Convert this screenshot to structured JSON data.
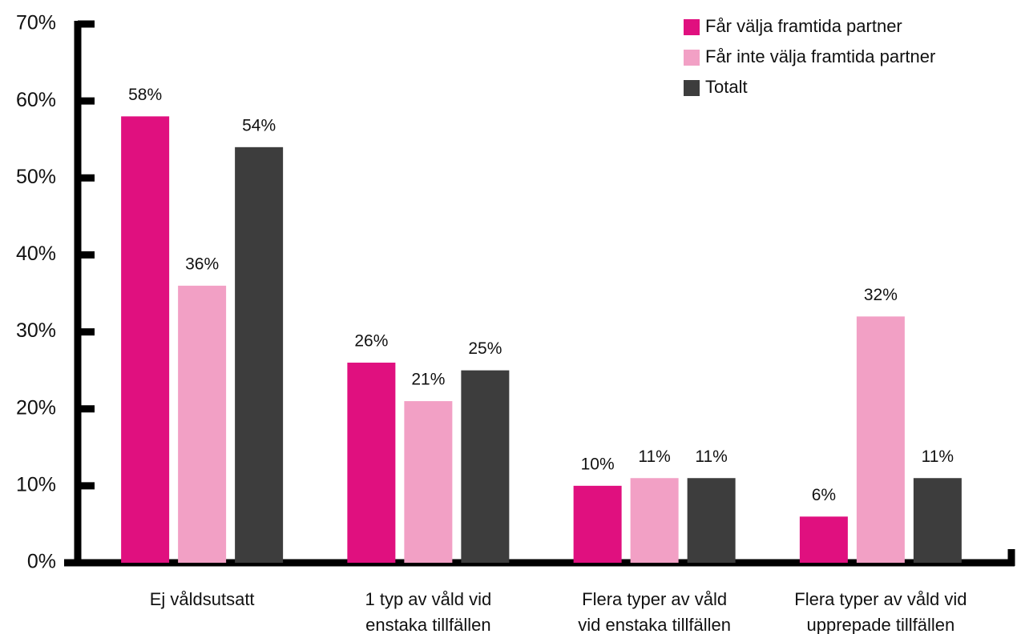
{
  "chart_data": {
    "type": "bar",
    "categories": [
      [
        "Ej våldsutsatt"
      ],
      [
        "1 typ av våld vid",
        "enstaka tillfällen"
      ],
      [
        "Flera typer av våld",
        "vid enstaka tillfällen"
      ],
      [
        "Flera typer av våld vid",
        "upprepade tillfällen"
      ]
    ],
    "series": [
      {
        "name": "Får välja framtida partner",
        "color": "#e0107f",
        "values": [
          58,
          26,
          10,
          6
        ],
        "value_labels": [
          "58%",
          "26%",
          "10%",
          "6%"
        ]
      },
      {
        "name": "Får inte välja framtida partner",
        "color": "#f2a0c5",
        "values": [
          36,
          21,
          11,
          32
        ],
        "value_labels": [
          "36%",
          "21%",
          "11%",
          "32%"
        ]
      },
      {
        "name": "Totalt",
        "color": "#3d3d3d",
        "values": [
          54,
          25,
          11,
          11
        ],
        "value_labels": [
          "54%",
          "25%",
          "11%",
          "11%"
        ]
      }
    ],
    "ylim": [
      0,
      70
    ],
    "yticks": [
      {
        "value": 0,
        "label": "0%"
      },
      {
        "value": 10,
        "label": "10%"
      },
      {
        "value": 20,
        "label": "20%"
      },
      {
        "value": 30,
        "label": "30%"
      },
      {
        "value": 40,
        "label": "40%"
      },
      {
        "value": 50,
        "label": "50%"
      },
      {
        "value": 60,
        "label": "60%"
      },
      {
        "value": 70,
        "label": "70%"
      }
    ],
    "legend": "top-right",
    "grid": false
  }
}
